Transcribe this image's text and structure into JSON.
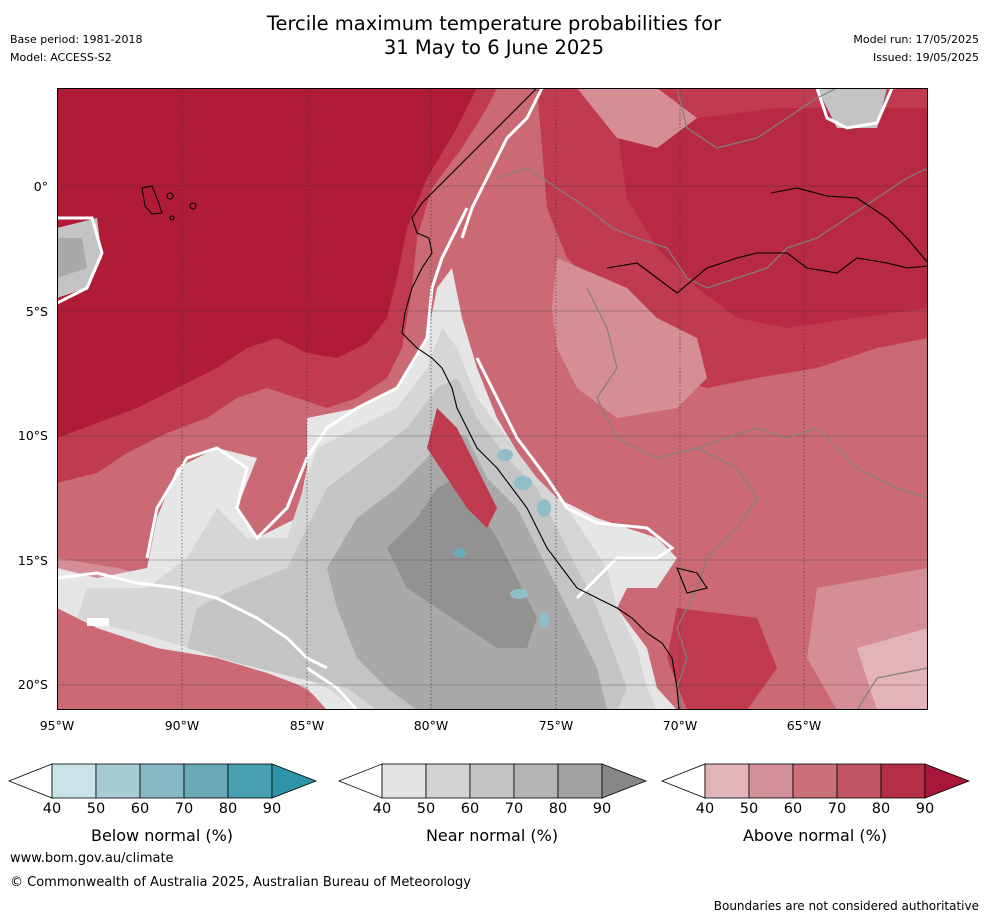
{
  "header": {
    "base_period": "Base period: 1981-2018",
    "model": "Model: ACCESS-S2",
    "title_line1": "Tercile maximum temperature probabilities for",
    "title_line2": "31 May to 6 June 2025",
    "model_run": "Model run: 17/05/2025",
    "issued": "Issued: 19/05/2025"
  },
  "map": {
    "lat_labels": [
      "0°",
      "5°S",
      "10°S",
      "15°S",
      "20°S"
    ],
    "lon_labels": [
      "95°W",
      "90°W",
      "85°W",
      "80°W",
      "75°W",
      "70°W",
      "65°W"
    ],
    "colors": {
      "above_90": "#b01c38",
      "above_80": "#c03b50",
      "above_70": "#cb6a75",
      "above_60": "#d68e96",
      "above_50": "#e2b3b8",
      "near_40": "#e6e6e6",
      "near_60": "#c4c4c4",
      "near_70": "#a9a9a9",
      "near_80": "#8e8e8e",
      "below_60": "#8fbec9",
      "below_70": "#6aacb9",
      "coast": "#000000",
      "border": "#808080"
    }
  },
  "legends": [
    {
      "label": "Below normal (%)",
      "ticks": [
        "40",
        "50",
        "60",
        "70",
        "80",
        "90"
      ],
      "colors": [
        "#ffffff",
        "#c9e3e8",
        "#a7cbd2",
        "#86b7c2",
        "#6aa9b6",
        "#46a0b0",
        "#2f94a8"
      ]
    },
    {
      "label": "Near normal (%)",
      "ticks": [
        "40",
        "50",
        "60",
        "70",
        "80",
        "90"
      ],
      "colors": [
        "#ffffff",
        "#e3e3e3",
        "#d2d2d2",
        "#c3c3c3",
        "#b4b4b4",
        "#a2a2a2",
        "#868686"
      ]
    },
    {
      "label": "Above normal (%)",
      "ticks": [
        "40",
        "50",
        "60",
        "70",
        "80",
        "90"
      ],
      "colors": [
        "#ffffff",
        "#e0b4b9",
        "#d4909a",
        "#c97079",
        "#c25565",
        "#b52e45",
        "#a8163a"
      ]
    }
  ],
  "footer": {
    "url": "www.bom.gov.au/climate",
    "copyright": "© Commonwealth of Australia 2025, Australian Bureau of Meteorology",
    "disclaimer": "Boundaries are not considered authoritative"
  }
}
